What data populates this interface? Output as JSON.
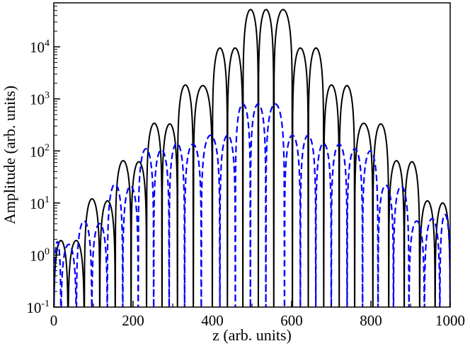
{
  "chart_data": {
    "type": "line",
    "xlabel": "z (arb. units)",
    "ylabel": "Amplitude (arb. units)",
    "xlim": [
      0,
      1000
    ],
    "ylim": [
      0.1,
      70000
    ],
    "yscale": "log",
    "xticks": [
      {
        "value": 0,
        "label": "0"
      },
      {
        "value": 200,
        "label": "200"
      },
      {
        "value": 400,
        "label": "400"
      },
      {
        "value": 600,
        "label": "600"
      },
      {
        "value": 800,
        "label": "800"
      },
      {
        "value": 1000,
        "label": "1000"
      }
    ],
    "yticks": [
      {
        "value": 0.1,
        "base": "10",
        "exp": "-1"
      },
      {
        "value": 1,
        "base": "10",
        "exp": "0"
      },
      {
        "value": 10,
        "base": "10",
        "exp": "1"
      },
      {
        "value": 100,
        "base": "10",
        "exp": "2"
      },
      {
        "value": 1000,
        "base": "10",
        "exp": "3"
      },
      {
        "value": 10000,
        "base": "10",
        "exp": "4"
      }
    ],
    "grid": false,
    "legend": "none",
    "series": [
      {
        "style": "solid",
        "color": "#000000",
        "arches": [
          {
            "x0": 0,
            "x1": 36,
            "peak": 1.9
          },
          {
            "x0": 36,
            "x1": 77,
            "peak": 1.9
          },
          {
            "x0": 77,
            "x1": 116,
            "peak": 12
          },
          {
            "x0": 116,
            "x1": 155,
            "peak": 11
          },
          {
            "x0": 155,
            "x1": 195,
            "peak": 65
          },
          {
            "x0": 195,
            "x1": 234,
            "peak": 62
          },
          {
            "x0": 234,
            "x1": 273,
            "peak": 340
          },
          {
            "x0": 273,
            "x1": 312,
            "peak": 330
          },
          {
            "x0": 312,
            "x1": 352,
            "peak": 1850
          },
          {
            "x0": 352,
            "x1": 400,
            "peak": 1800
          },
          {
            "x0": 400,
            "x1": 438,
            "peak": 9500
          },
          {
            "x0": 438,
            "x1": 477,
            "peak": 9500
          },
          {
            "x0": 477,
            "x1": 516,
            "peak": 52000
          },
          {
            "x0": 516,
            "x1": 555,
            "peak": 52000
          },
          {
            "x0": 555,
            "x1": 602,
            "peak": 52000
          },
          {
            "x0": 602,
            "x1": 642,
            "peak": 9500
          },
          {
            "x0": 642,
            "x1": 681,
            "peak": 9500
          },
          {
            "x0": 681,
            "x1": 720,
            "peak": 1850
          },
          {
            "x0": 720,
            "x1": 759,
            "peak": 1800
          },
          {
            "x0": 759,
            "x1": 805,
            "peak": 340
          },
          {
            "x0": 805,
            "x1": 845,
            "peak": 330
          },
          {
            "x0": 845,
            "x1": 884,
            "peak": 65
          },
          {
            "x0": 884,
            "x1": 923,
            "peak": 62
          },
          {
            "x0": 923,
            "x1": 962,
            "peak": 11
          },
          {
            "x0": 962,
            "x1": 1000,
            "peak": 10
          }
        ]
      },
      {
        "style": "dashed",
        "color": "#0000ff",
        "arches": [
          {
            "x0": 0,
            "x1": 18,
            "peak": 1.8
          },
          {
            "x0": 18,
            "x1": 57,
            "peak": 1.6
          },
          {
            "x0": 57,
            "x1": 96,
            "peak": 4.5
          },
          {
            "x0": 96,
            "x1": 135,
            "peak": 4
          },
          {
            "x0": 135,
            "x1": 174,
            "peak": 23
          },
          {
            "x0": 174,
            "x1": 213,
            "peak": 21
          },
          {
            "x0": 213,
            "x1": 252,
            "peak": 110
          },
          {
            "x0": 252,
            "x1": 291,
            "peak": 105
          },
          {
            "x0": 291,
            "x1": 330,
            "peak": 140
          },
          {
            "x0": 330,
            "x1": 372,
            "peak": 135
          },
          {
            "x0": 372,
            "x1": 419,
            "peak": 200
          },
          {
            "x0": 419,
            "x1": 458,
            "peak": 200
          },
          {
            "x0": 458,
            "x1": 496,
            "peak": 800
          },
          {
            "x0": 496,
            "x1": 535,
            "peak": 800
          },
          {
            "x0": 535,
            "x1": 582,
            "peak": 800
          },
          {
            "x0": 582,
            "x1": 622,
            "peak": 200
          },
          {
            "x0": 622,
            "x1": 661,
            "peak": 200
          },
          {
            "x0": 661,
            "x1": 700,
            "peak": 140
          },
          {
            "x0": 700,
            "x1": 740,
            "peak": 135
          },
          {
            "x0": 740,
            "x1": 779,
            "peak": 110
          },
          {
            "x0": 779,
            "x1": 818,
            "peak": 100
          },
          {
            "x0": 818,
            "x1": 857,
            "peak": 22
          },
          {
            "x0": 857,
            "x1": 896,
            "peak": 21
          },
          {
            "x0": 896,
            "x1": 935,
            "peak": 4.5
          },
          {
            "x0": 935,
            "x1": 974,
            "peak": 5
          },
          {
            "x0": 974,
            "x1": 1000,
            "peak": 6
          }
        ]
      }
    ]
  }
}
